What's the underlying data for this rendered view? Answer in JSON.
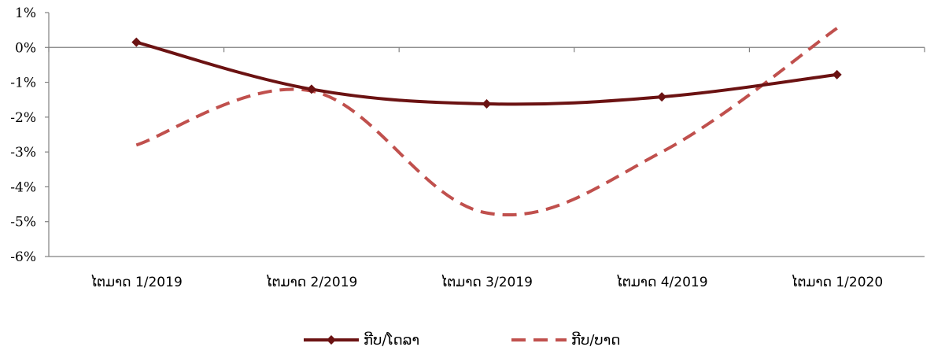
{
  "chart_data": {
    "type": "line",
    "categories": [
      "ໄຕມາດ 1/2019",
      "ໄຕມາດ 2/2019",
      "ໄຕມາດ 3/2019",
      "ໄຕມາດ 4/2019",
      "ໄຕມາດ 1/2020"
    ],
    "y_ticks": [
      "1%",
      "0%",
      "-1%",
      "-2%",
      "-3%",
      "-4%",
      "-5%",
      "-6%"
    ],
    "ylim": [
      -6,
      1
    ],
    "grid": false,
    "legend_position": "bottom",
    "series": [
      {
        "name": "ກີບ/ໂດລາ",
        "values": [
          0.15,
          -1.2,
          -1.62,
          -1.42,
          -0.78
        ],
        "style": "solid",
        "marker": "diamond",
        "color": "#6b1212"
      },
      {
        "name": "ກີບ/ບາດ",
        "values": [
          -2.8,
          -1.25,
          -4.75,
          -3.0,
          0.55
        ],
        "style": "dashed",
        "marker": "none",
        "color": "#c0504d"
      }
    ]
  }
}
